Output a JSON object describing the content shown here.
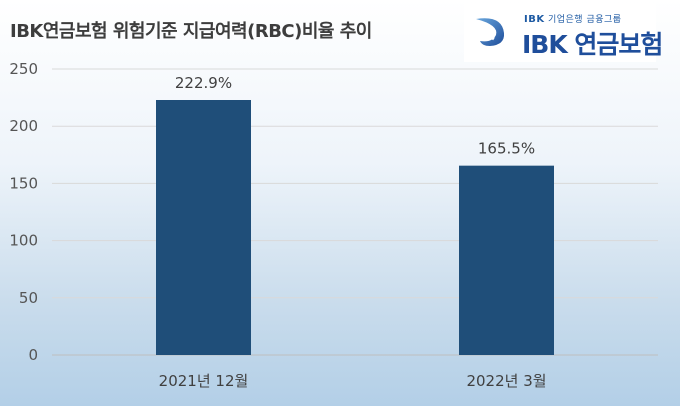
{
  "title": "IBK연금보험 위험기준 지급여력(RBC)비율 추이",
  "logo": {
    "tag_bold": "IBK",
    "tag_text": "기업은행 금융그룹",
    "name": "IBK 연금보험",
    "mark_icon": "ibk-swoosh-icon",
    "brand_color": "#1f4e9b"
  },
  "chart_data": {
    "type": "bar",
    "title": "IBK연금보험 위험기준 지급여력(RBC)비율 추이",
    "categories": [
      "2021년 12월",
      "2022년 3월"
    ],
    "values": [
      222.9,
      165.5
    ],
    "data_labels": [
      "222.9%",
      "165.5%"
    ],
    "yticks": [
      "0",
      "50",
      "100",
      "150",
      "200",
      "250"
    ],
    "ylim": [
      0,
      250
    ],
    "xlabel": "",
    "ylabel": "",
    "grid": true,
    "legend": "none",
    "bar_color": "#1f4e79"
  }
}
